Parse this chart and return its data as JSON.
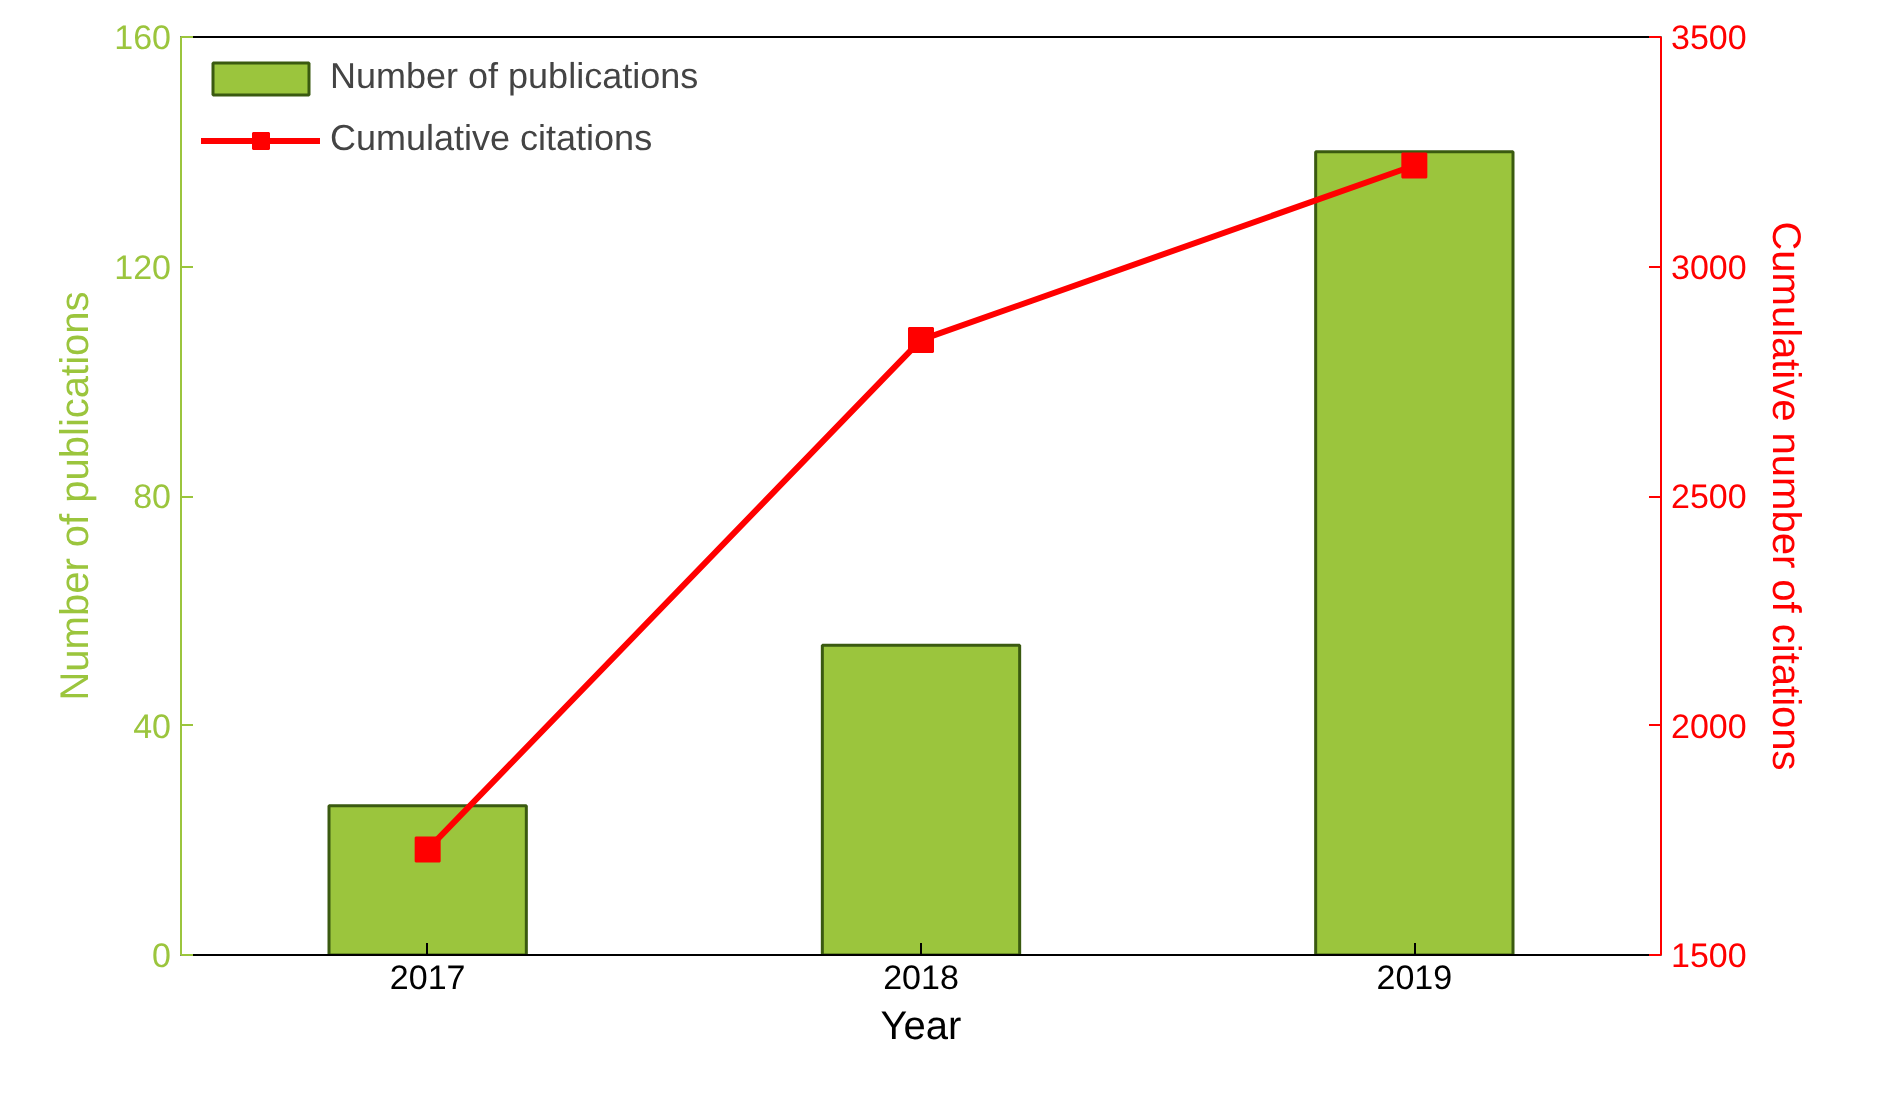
{
  "chart_data": {
    "type": "bar",
    "categories": [
      "2017",
      "2018",
      "2019"
    ],
    "xlabel": "Year",
    "ylabel": "Number of publications",
    "y2label": "Cumulative number of citations",
    "ylim": [
      0,
      160
    ],
    "yticks": [
      0,
      40,
      80,
      120,
      160
    ],
    "y2lim": [
      1500,
      3500
    ],
    "y2ticks": [
      1500,
      2000,
      2500,
      3000,
      3500
    ],
    "series": [
      {
        "name": "Number of publications",
        "color": "#9bc53d",
        "values": [
          26,
          54,
          140
        ]
      },
      {
        "name": "Cumulative citations",
        "type": "line",
        "axis": "y2",
        "color": "#ff0000",
        "values": [
          1730,
          2840,
          3220
        ]
      }
    ],
    "marker": "square",
    "legend": "top left",
    "grid": false
  }
}
